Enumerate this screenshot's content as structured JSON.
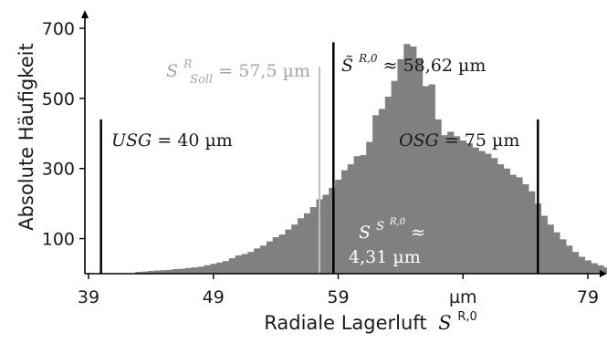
{
  "chart_data": {
    "type": "bar",
    "xlabel": "Radiale Lagerluft",
    "xlabel_symbol": "S",
    "xlabel_sup": "R,0",
    "ylabel": "Absolute Häufigkeit",
    "xlim": [
      39,
      80.5
    ],
    "ylim": [
      0,
      730
    ],
    "xticks": [
      39,
      49,
      59,
      69,
      79
    ],
    "xtick_labels": [
      "39",
      "49",
      "59",
      "µm",
      "79"
    ],
    "yticks": [
      100,
      300,
      500,
      700
    ],
    "ytick_labels": [
      "100",
      "300",
      "500",
      "700"
    ],
    "bin_width": 0.5,
    "bins_start": 42.75,
    "values": [
      5,
      6,
      8,
      9,
      10,
      11,
      13,
      14,
      16,
      18,
      20,
      24,
      28,
      32,
      36,
      44,
      52,
      56,
      62,
      72,
      80,
      92,
      104,
      112,
      126,
      140,
      158,
      172,
      190,
      212,
      225,
      245,
      268,
      295,
      312,
      335,
      338,
      376,
      452,
      470,
      505,
      550,
      612,
      655,
      648,
      615,
      535,
      540,
      440,
      395,
      405,
      392,
      380,
      372,
      360,
      350,
      342,
      330,
      312,
      300,
      282,
      275,
      255,
      235,
      200,
      165,
      140,
      118,
      98,
      80,
      62,
      48,
      38,
      30,
      24,
      18,
      14,
      10,
      8,
      6,
      4,
      3,
      2
    ],
    "colors": {
      "bars": "#808080",
      "soll_line": "#bfbfbf",
      "limit_lines": "#000000"
    },
    "annotations": {
      "soll": {
        "symbol": "S",
        "sup": "R",
        "sub": "Soll",
        "rest": " = 57,5 µm",
        "x": 57.5
      },
      "median": {
        "symbol": "S̃",
        "sup": "R,0",
        "rest": " ≈ 58,62 µm",
        "x": 58.62
      },
      "usg": {
        "name": "USG",
        "rest": " = 40 µm",
        "x": 40
      },
      "osg": {
        "name": "OSG",
        "rest": " = 75 µm",
        "x": 75
      },
      "spread_line1_symbol": "S",
      "spread_line1_sup": "S",
      "spread_line1_supsup": "R,0",
      "spread_line1_rest": " ≈",
      "spread_line2": "4,31 µm"
    }
  }
}
